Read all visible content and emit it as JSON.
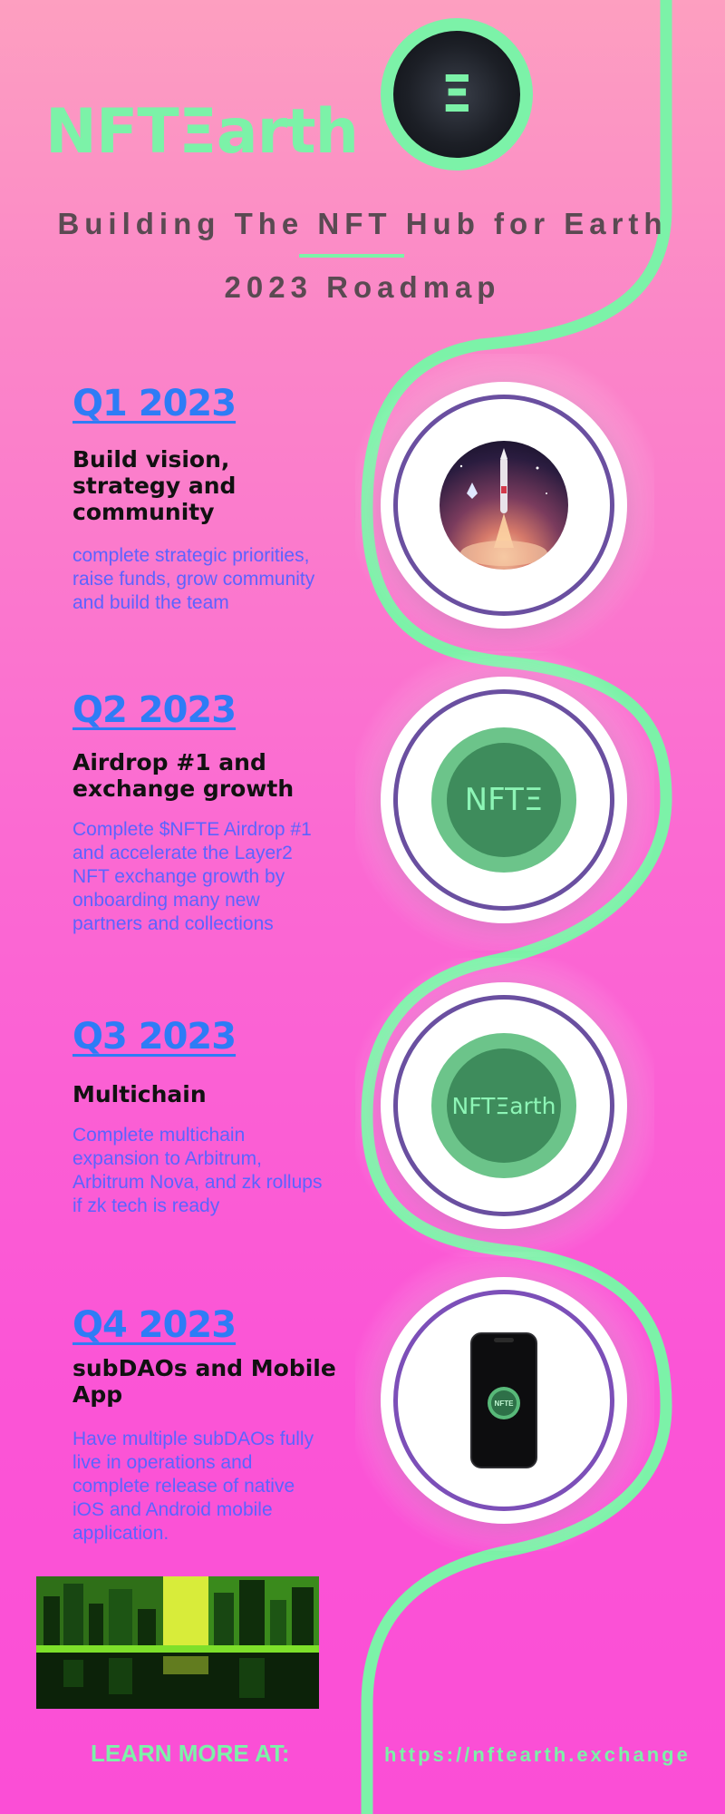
{
  "brand": {
    "logo_text": "NFTΞarth",
    "badge_glyph": "Ξ"
  },
  "header": {
    "tagline": "Building The NFT Hub for Earth",
    "subtitle": "2023 Roadmap"
  },
  "roadmap": [
    {
      "quarter": "Q1 2023",
      "heading": "Build vision, strategy and community",
      "description": "complete strategic priorities, raise funds, grow community and build the team",
      "image": "rocket-launch-icon"
    },
    {
      "quarter": "Q2 2023",
      "heading": "Airdrop #1 and exchange growth",
      "description": "Complete $NFTE Airdrop #1 and accelerate the Layer2 NFT exchange growth by onboarding many new partners and collections",
      "image": "nfte-coin-icon",
      "coin_text": "NFTΞ"
    },
    {
      "quarter": "Q3 2023",
      "heading": "Multichain",
      "description": "Complete multichain expansion to Arbitrum, Arbitrum Nova, and zk rollups  if zk tech is ready",
      "image": "nftearth-coin-icon",
      "coin_text": "NFTΞarth"
    },
    {
      "quarter": "Q4 2023",
      "heading": "subDAOs and Mobile App",
      "description": "Have multiple subDAOs fully live in operations and complete release of native iOS and Android mobile application.",
      "image": "mobile-phone-icon",
      "app_text": "NFTE"
    }
  ],
  "footer": {
    "cta_label": "LEARN MORE AT:",
    "url": "https://nftearth.exchange"
  },
  "colors": {
    "accent_green": "#7cf2a8",
    "title_blue": "#2e7cf6",
    "desc_blue": "#5b63ff",
    "ring_purple": "#6a4fa0"
  }
}
